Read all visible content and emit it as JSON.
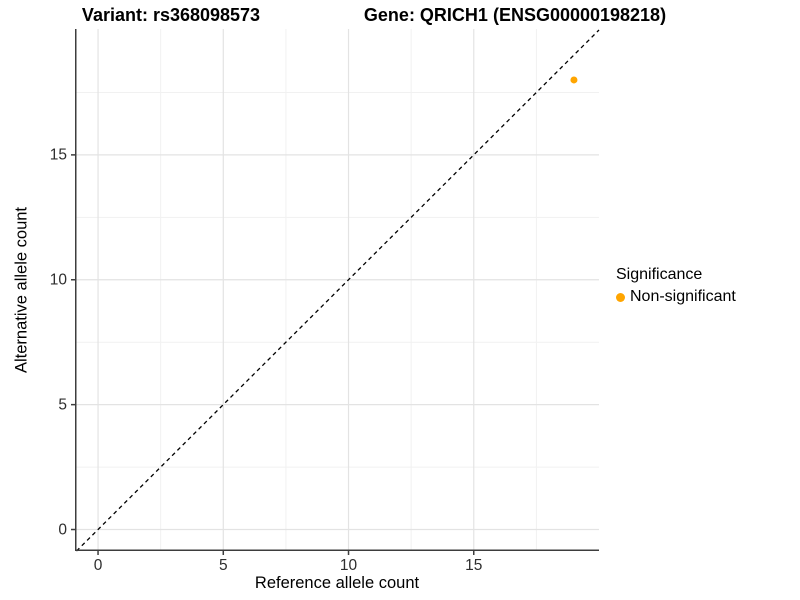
{
  "titles": {
    "variant": "Variant: rs368098573",
    "gene": "Gene: QRICH1 (ENSG00000198218)"
  },
  "legend": {
    "title": "Significance",
    "items": [
      {
        "label": "Non-significant",
        "color": "#FFA500",
        "marker": "dot"
      }
    ]
  },
  "colors": {
    "point_orange": "#FFA500",
    "grid_major": "#e3e3e3",
    "grid_minor": "#f1f1f1",
    "axis_line": "#3d3d3d",
    "identity_line": "#000000",
    "tick_text": "#2e2e2e"
  },
  "chart_data": {
    "type": "scatter",
    "title": "Variant: rs368098573 — Gene: QRICH1 (ENSG00000198218)",
    "xlabel": "Reference allele count",
    "ylabel": "Alternative allele count",
    "xlim": [
      -0.92,
      20.0
    ],
    "ylim": [
      -0.86,
      20.04
    ],
    "x_ticks": [
      0,
      5,
      10,
      15
    ],
    "y_ticks": [
      0,
      5,
      10,
      15
    ],
    "x_minor_ticks": [
      2.5,
      7.5,
      12.5,
      17.5
    ],
    "y_minor_ticks": [
      2.5,
      7.5,
      12.5,
      17.5
    ],
    "grid": true,
    "legend_position": "right",
    "reference_line": {
      "type": "identity y=x",
      "style": "dashed",
      "color": "#000000"
    },
    "series": [
      {
        "name": "Non-significant",
        "color": "#FFA500",
        "points": [
          {
            "x": 19,
            "y": 18
          }
        ]
      }
    ]
  }
}
